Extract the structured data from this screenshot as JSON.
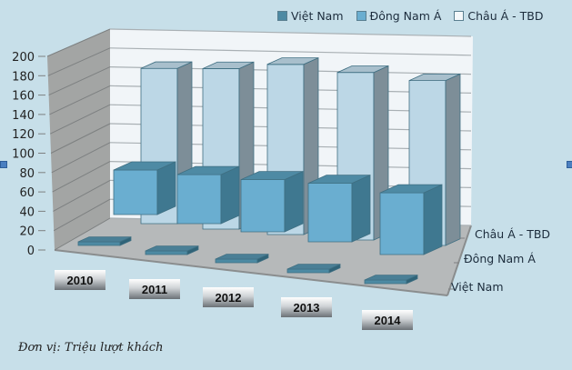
{
  "legend": [
    {
      "label": "Việt Nam",
      "color": "#4d8aa3"
    },
    {
      "label": "Đông Nam Á",
      "color": "#6aaed0"
    },
    {
      "label": "Châu Á - TBD",
      "color": "#e8f2f8"
    }
  ],
  "unit_label": "Đơn vị:  Triệu lượt khách",
  "chart_data": {
    "type": "bar",
    "subtype": "3d-clustered-depth",
    "title": "",
    "categories": [
      "2010",
      "2011",
      "2012",
      "2013",
      "2014"
    ],
    "series": [
      {
        "name": "Việt Nam",
        "values": [
          5,
          6,
          7,
          8,
          8
        ]
      },
      {
        "name": "Đông Nam Á",
        "values": [
          70,
          77,
          82,
          92,
          97
        ]
      },
      {
        "name": "Châu Á - TBD",
        "values": [
          176,
          182,
          193,
          190,
          187
        ]
      }
    ],
    "xlabel": "",
    "ylabel": "Đơn vị: Triệu lượt khách",
    "yticks": [
      0,
      20,
      40,
      60,
      80,
      100,
      120,
      140,
      160,
      180,
      200
    ],
    "ylim": [
      0,
      200
    ],
    "depth_labels": [
      "Châu Á - TBD",
      "Đông Nam Á",
      "Việt Nam"
    ],
    "grid": true,
    "legend_position": "top-right"
  }
}
